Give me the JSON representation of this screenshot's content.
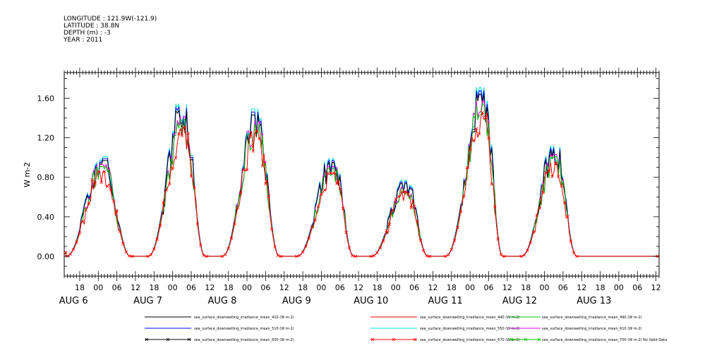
{
  "header": {
    "longitude": "LONGITUDE : 121.9W(-121.9)",
    "latitude": "LATITUDE : 38.8N",
    "depth": "DEPTH (m) : -3",
    "year": "YEAR : 2011"
  },
  "chart_data": {
    "type": "line",
    "title": "",
    "xlabel": "",
    "ylabel": "W m-2",
    "ylim": [
      -0.2,
      1.86
    ],
    "y_ticks": [
      0.0,
      0.4,
      0.8,
      1.2,
      1.6
    ],
    "y_tick_labels": [
      "0.00",
      "0.40",
      "0.80",
      "1.20",
      "1.60"
    ],
    "x_hour_labels": [
      "18",
      "00",
      "06",
      "12",
      "18",
      "00",
      "06",
      "12",
      "18",
      "00",
      "06",
      "12",
      "18",
      "00",
      "06",
      "12",
      "18",
      "00",
      "06",
      "12",
      "18",
      "00",
      "06",
      "12",
      "18",
      "00",
      "06",
      "12",
      "18",
      "00",
      "06",
      "12"
    ],
    "x_date_labels": [
      "AUG 6",
      "AUG 7",
      "AUG 8",
      "AUG 9",
      "AUG 10",
      "AUG 11",
      "AUG 12",
      "AUG 13"
    ],
    "grid": false,
    "legend_placement": "bottom",
    "series": [
      {
        "name": "sea_surface_downwelling_irradiance_mean_410 (W m-2)",
        "color": "#000000",
        "marker": "none"
      },
      {
        "name": "sea_surface_downwelling_irradiance_mean_440 (W m-2)",
        "color": "#ff0000",
        "marker": "none"
      },
      {
        "name": "sea_surface_downwelling_irradiance_mean_490 (W m-2)",
        "color": "#00c000",
        "marker": "none"
      },
      {
        "name": "sea_surface_downwelling_irradiance_mean_510 (W m-2)",
        "color": "#0000ff",
        "marker": "none"
      },
      {
        "name": "sea_surface_downwelling_irradiance_mean_550 (W m-2)",
        "color": "#00e0e0",
        "marker": "none"
      },
      {
        "name": "sea_surface_downwelling_irradiance_mean_610 (W m-2)",
        "color": "#e000e0",
        "marker": "none"
      },
      {
        "name": "sea_surface_downwelling_irradiance_mean_650 (W m-2)",
        "color": "#000000",
        "marker": "x"
      },
      {
        "name": "sea_surface_downwelling_irradiance_mean_670 (W m-2)",
        "color": "#ff0000",
        "marker": "x"
      },
      {
        "name": "sea_surface_downwelling_irradiance_mean_700 (W m-2) No Valid Data",
        "color": "#00c000",
        "marker": "x"
      }
    ],
    "x_range_hours": [
      -11,
      181
    ],
    "daily_peaks": [
      {
        "day": "AUG 6",
        "start": -10.5,
        "peak_time": 1.5,
        "end": 10.5,
        "peak": 1.01,
        "series_max": [
          1.01,
          0.93,
          0.85
        ]
      },
      {
        "day": "AUG 7",
        "start": 16.0,
        "peak_time": 27.5,
        "end": 34.5,
        "peak": 1.54,
        "series_max": [
          1.54,
          1.38,
          1.28
        ]
      },
      {
        "day": "AUG 8",
        "start": 40.0,
        "peak_time": 51.0,
        "end": 58.5,
        "peak": 1.49,
        "series_max": [
          1.49,
          1.33,
          1.22
        ]
      },
      {
        "day": "AUG 9",
        "start": 64.0,
        "peak_time": 76.0,
        "end": 82.5,
        "peak": 0.99,
        "series_max": [
          0.99,
          0.92,
          0.86
        ]
      },
      {
        "day": "AUG 10",
        "start": 88.0,
        "peak_time": 99.5,
        "end": 106.5,
        "peak": 0.77,
        "series_max": [
          0.77,
          0.69,
          0.63
        ]
      },
      {
        "day": "AUG 11",
        "start": 112.0,
        "peak_time": 124.5,
        "end": 130.5,
        "peak": 1.71,
        "series_max": [
          1.71,
          1.55,
          1.38
        ]
      },
      {
        "day": "AUG 12",
        "start": 136.5,
        "peak_time": 147.5,
        "end": 154.5,
        "peak": 1.12,
        "series_max": [
          1.12,
          1.02,
          0.93
        ]
      }
    ]
  }
}
